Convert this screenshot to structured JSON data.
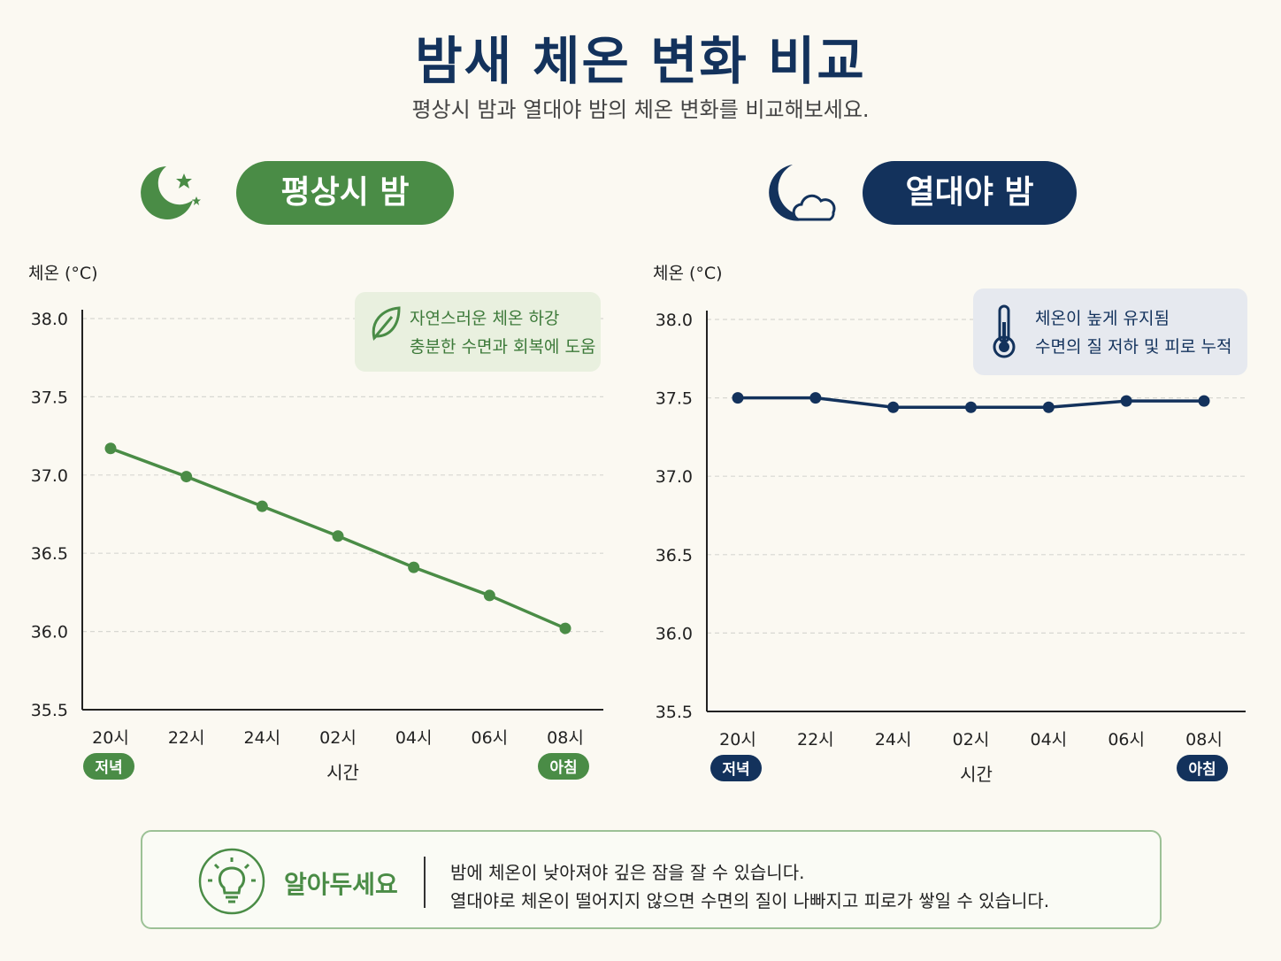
{
  "header": {
    "title": "밤새 체온 변화 비교",
    "subtitle": "평상시 밤과 열대야 밤의 체온 변화를 비교해보세요."
  },
  "panels": [
    {
      "label": "평상시 밤",
      "icon": "moon-stars-icon",
      "color": "#4a8c46",
      "note": {
        "icon": "leaf-icon",
        "line1": "자연스러운 체온 하강",
        "line2": "충분한 수면과 회복에 도움"
      }
    },
    {
      "label": "열대야 밤",
      "icon": "moon-cloud-icon",
      "color": "#13325c",
      "note": {
        "icon": "thermometer-icon",
        "line1": "체온이 높게 유지됨",
        "line2": "수면의 질 저하 및 피로 누적"
      }
    }
  ],
  "chart_data": [
    {
      "type": "line",
      "ylabel": "체온 (°C)",
      "xlabel": "시간",
      "ylim": [
        35.5,
        38.0
      ],
      "yticks": [
        "38.0",
        "37.5",
        "37.0",
        "36.5",
        "36.0",
        "35.5"
      ],
      "categories": [
        "20시",
        "22시",
        "24시",
        "02시",
        "04시",
        "06시",
        "08시"
      ],
      "series": [
        {
          "values": [
            37.17,
            36.99,
            36.8,
            36.61,
            36.41,
            36.23,
            36.02
          ]
        }
      ],
      "badges": {
        "start": "저녁",
        "end": "아침"
      },
      "grid": true
    },
    {
      "type": "line",
      "ylabel": "체온 (°C)",
      "xlabel": "시간",
      "ylim": [
        35.5,
        38.0
      ],
      "yticks": [
        "38.0",
        "37.5",
        "37.0",
        "36.5",
        "36.0",
        "35.5"
      ],
      "categories": [
        "20시",
        "22시",
        "24시",
        "02시",
        "04시",
        "06시",
        "08시"
      ],
      "series": [
        {
          "values": [
            37.5,
            37.5,
            37.44,
            37.44,
            37.44,
            37.48,
            37.48
          ]
        }
      ],
      "badges": {
        "start": "저녁",
        "end": "아침"
      },
      "grid": true
    }
  ],
  "tip": {
    "icon": "lightbulb-icon",
    "label": "알아두세요",
    "line1": "밤에 체온이 낮아져야 깊은 잠을 잘 수 있습니다.",
    "line2": "열대야로 체온이 떨어지지 않으면 수면의 질이 나빠지고 피로가 쌓일 수 있습니다."
  }
}
